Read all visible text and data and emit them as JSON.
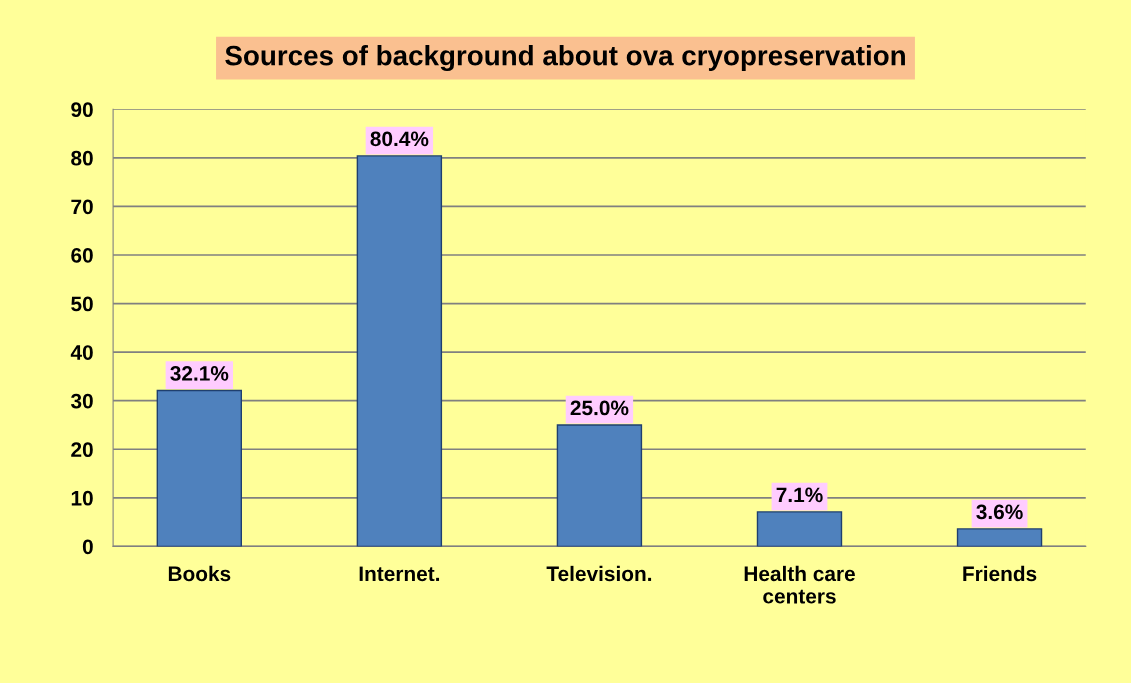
{
  "chart_data": {
    "type": "bar",
    "title": "Sources of background about ova cryopreservation",
    "categories": [
      "Books",
      "Internet.",
      "Television.",
      "Health care\ncenters",
      "Friends"
    ],
    "values": [
      32.1,
      80.4,
      25.0,
      7.1,
      3.6
    ],
    "value_labels": [
      "32.1%",
      "80.4%",
      "25.0%",
      "7.1%",
      "3.6%"
    ],
    "color": "#4f81bd",
    "ylim": [
      0,
      90
    ],
    "yticks": [
      0,
      10,
      20,
      30,
      40,
      50,
      60,
      70,
      80,
      90
    ],
    "grid": "y"
  }
}
